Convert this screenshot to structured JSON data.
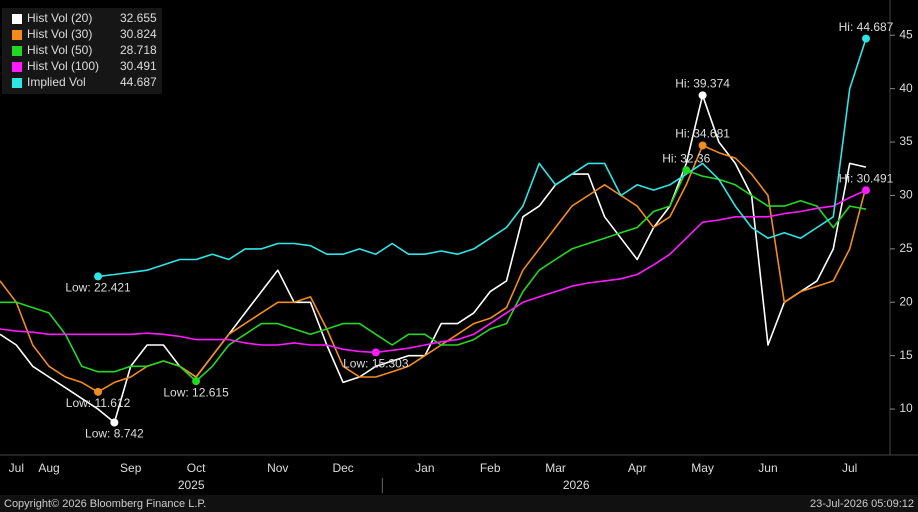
{
  "chart_data": {
    "type": "line",
    "categories": [
      null,
      "Jul",
      null,
      "Aug",
      null,
      null,
      null,
      null,
      "Sep",
      null,
      null,
      null,
      "Oct",
      null,
      null,
      null,
      null,
      "Nov",
      null,
      null,
      null,
      "Dec",
      null,
      null,
      null,
      null,
      "Jan",
      null,
      null,
      null,
      "Feb",
      null,
      null,
      null,
      "Mar",
      null,
      null,
      null,
      null,
      "Apr",
      null,
      null,
      null,
      "May",
      null,
      null,
      null,
      "Jun",
      null,
      null,
      null,
      null,
      "Jul",
      null
    ],
    "x_group_labels": [
      "2025",
      "2026"
    ],
    "ylim": [
      5.7,
      48.3
    ],
    "yticks": [
      10,
      15,
      20,
      25,
      30,
      35,
      40,
      45
    ],
    "grid": false,
    "legend": "top-left",
    "series": [
      {
        "name": "Hist Vol (20)",
        "color": "#ffffff",
        "legend_value": 32.655,
        "values": [
          17,
          16,
          14,
          13,
          12,
          11,
          10,
          8.742,
          14,
          16,
          16,
          14,
          13,
          15,
          17,
          19,
          21,
          23,
          20,
          20,
          16,
          12.5,
          13,
          14,
          14.5,
          15,
          15,
          18,
          18,
          19,
          21,
          22,
          28,
          29,
          31,
          32,
          32,
          28,
          26,
          24,
          27,
          29,
          33,
          39.374,
          35,
          33,
          30,
          16,
          20,
          21,
          22,
          25,
          33,
          32.655
        ],
        "high": {
          "label": "Hi: 39.374",
          "value": 39.374
        },
        "low": {
          "label": "Low: 8.742",
          "value": 8.742
        }
      },
      {
        "name": "Hist Vol (30)",
        "color": "#f28c1e",
        "legend_value": 30.824,
        "values": [
          22,
          20,
          16,
          14,
          13,
          12.5,
          11.612,
          12.5,
          13,
          14,
          14.5,
          14,
          13,
          15,
          17,
          18,
          19,
          20,
          20,
          20.5,
          17.5,
          14,
          13,
          13,
          13.5,
          14,
          15,
          16,
          17,
          18,
          18.5,
          19.5,
          23,
          25,
          27,
          29,
          30,
          31,
          30,
          29,
          27,
          28,
          31,
          34.681,
          34,
          33.5,
          32,
          30,
          20,
          21,
          21.5,
          22,
          25,
          30.824
        ],
        "high": {
          "label": "Hi: 34.681",
          "value": 34.681
        },
        "low": {
          "label": "Low: 11.612",
          "value": 11.612
        }
      },
      {
        "name": "Hist Vol (50)",
        "color": "#22d822",
        "legend_value": 28.718,
        "values": [
          20,
          20,
          19.5,
          19,
          17,
          14,
          13.5,
          13.5,
          14,
          14,
          14.5,
          14,
          12.615,
          14,
          16,
          17,
          18,
          18,
          17.5,
          17,
          17.5,
          18,
          18,
          17,
          16,
          17,
          17,
          16,
          16,
          16.5,
          17.5,
          18,
          21,
          23,
          24,
          25,
          25.5,
          26,
          26.5,
          27,
          28.5,
          29,
          32.36,
          31.8,
          31.5,
          31,
          30,
          29,
          29,
          29.5,
          29,
          27,
          29,
          28.718
        ],
        "high": {
          "label": "Hi: 32.36",
          "value": 32.36
        },
        "low": {
          "label": "Low: 12.615",
          "value": 12.615
        }
      },
      {
        "name": "Hist Vol (100)",
        "color": "#ff1aff",
        "legend_value": 30.491,
        "values": [
          17.5,
          17.3,
          17.2,
          17,
          17,
          17,
          17,
          17,
          17,
          17.1,
          17,
          16.8,
          16.5,
          16.5,
          16.5,
          16.2,
          16,
          16,
          16.2,
          16,
          16,
          15.6,
          15.4,
          15.303,
          15.5,
          15.7,
          16,
          16.3,
          16.5,
          17,
          18,
          19,
          20,
          20.5,
          21,
          21.5,
          21.8,
          22,
          22.2,
          22.6,
          23.5,
          24.5,
          26,
          27.5,
          27.7,
          28,
          28,
          28,
          28.3,
          28.5,
          28.8,
          29,
          29.8,
          30.491
        ],
        "high": {
          "label": "Hi: 30.491",
          "value": 30.491
        },
        "low": {
          "label": "Low: 15.303",
          "value": 15.303
        }
      },
      {
        "name": "Implied Vol",
        "color": "#2ee6e6",
        "legend_value": 44.687,
        "values": [
          null,
          null,
          null,
          null,
          null,
          null,
          22.421,
          22.6,
          22.8,
          23,
          23.5,
          24,
          24,
          24.5,
          24,
          25,
          25,
          25.5,
          25.5,
          25.3,
          24.5,
          24.5,
          25,
          24.5,
          25.5,
          24.5,
          24.5,
          24.8,
          24.5,
          25,
          26,
          27,
          29,
          33,
          31,
          32,
          33,
          33,
          30,
          31,
          30.5,
          31,
          32,
          33,
          31.5,
          29,
          27,
          26,
          26.5,
          26,
          27,
          28,
          40,
          44.687
        ],
        "high": {
          "label": "Hi: 44.687",
          "value": 44.687
        },
        "low": {
          "label": "Low: 22.421",
          "value": 22.421
        }
      }
    ]
  },
  "footer": {
    "copyright": "Copyright© 2026 Bloomberg Finance L.P.",
    "timestamp": "23-Jul-2026 05:09:12"
  }
}
